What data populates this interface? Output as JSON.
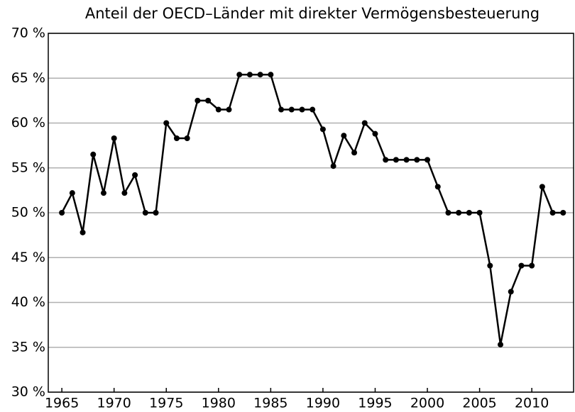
{
  "chart_data": {
    "type": "line",
    "title": "Anteil der OECD–Länder mit direkter Vermögensbesteuerung",
    "x": [
      1965,
      1966,
      1967,
      1968,
      1969,
      1970,
      1971,
      1972,
      1973,
      1974,
      1975,
      1976,
      1977,
      1978,
      1979,
      1980,
      1981,
      1982,
      1983,
      1984,
      1985,
      1986,
      1987,
      1988,
      1989,
      1990,
      1991,
      1992,
      1993,
      1994,
      1995,
      1996,
      1997,
      1998,
      1999,
      2000,
      2001,
      2002,
      2003,
      2004,
      2005,
      2006,
      2007,
      2008,
      2009,
      2010,
      2011,
      2012,
      2013
    ],
    "series": [
      {
        "name": null,
        "color": "#000000",
        "values": [
          50,
          52.2,
          47.8,
          56.5,
          52.2,
          58.3,
          52.2,
          54.2,
          50,
          50,
          60,
          58.3,
          58.3,
          62.5,
          62.5,
          61.5,
          61.5,
          65.4,
          65.4,
          65.4,
          65.4,
          61.5,
          61.5,
          61.5,
          61.5,
          59.3,
          55.2,
          58.6,
          56.7,
          60,
          58.8,
          55.9,
          55.9,
          55.9,
          55.9,
          55.9,
          52.9,
          50,
          50,
          50,
          50,
          44.1,
          35.3,
          41.2,
          44.1,
          44.1,
          52.9,
          50,
          50
        ]
      }
    ],
    "xlim": [
      1963.7,
      2014.0
    ],
    "xticks": [
      1965,
      1970,
      1975,
      1980,
      1985,
      1990,
      1995,
      2000,
      2005,
      2010
    ],
    "ylim": [
      30,
      70
    ],
    "yticks": [
      {
        "value": 30,
        "label": "30 %"
      },
      {
        "value": 35,
        "label": "35 %"
      },
      {
        "value": 40,
        "label": "40 %"
      },
      {
        "value": 45,
        "label": "45 %"
      },
      {
        "value": 50,
        "label": "50 %"
      },
      {
        "value": 55,
        "label": "55 %"
      },
      {
        "value": 60,
        "label": "60 %"
      },
      {
        "value": 65,
        "label": "65 %"
      },
      {
        "value": 70,
        "label": "70 %"
      }
    ],
    "grid": true
  }
}
